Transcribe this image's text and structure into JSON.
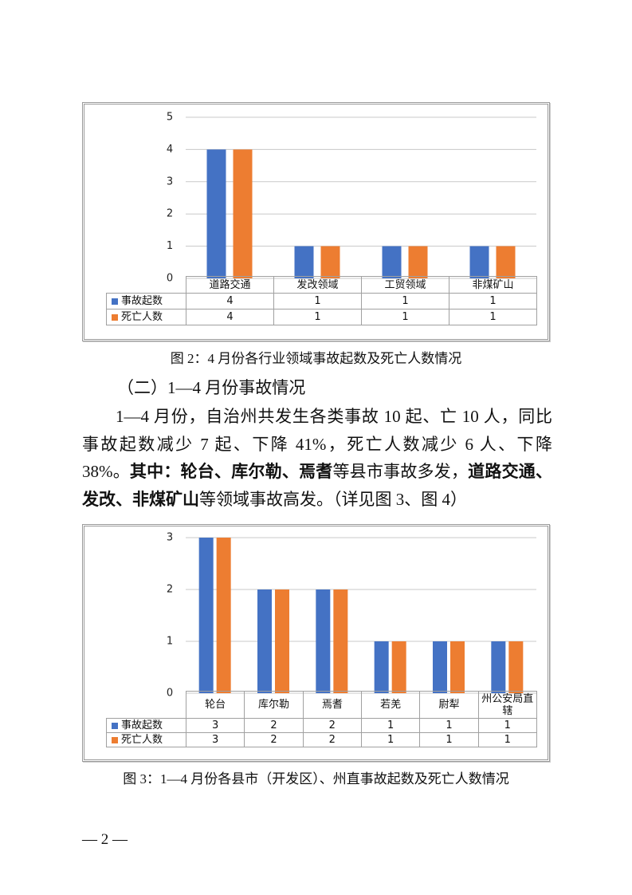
{
  "chart_data": [
    {
      "type": "bar",
      "caption": "图 2：4 月份各行业领域事故起数及死亡人数情况",
      "categories": [
        "道路交通",
        "发改领域",
        "工贸领域",
        "非煤矿山"
      ],
      "series": [
        {
          "name": "事故起数",
          "color": "#4472c4",
          "values": [
            4,
            1,
            1,
            1
          ]
        },
        {
          "name": "死亡人数",
          "color": "#ed7d31",
          "values": [
            4,
            1,
            1,
            1
          ]
        }
      ],
      "ylim": [
        0,
        5
      ],
      "yticks": [
        0,
        1,
        2,
        3,
        4,
        5
      ],
      "grid": true
    },
    {
      "type": "bar",
      "caption": "图 3：1—4 月份各县市（开发区）、州直事故起数及死亡人数情况",
      "categories": [
        "轮台",
        "库尔勒",
        "焉耆",
        "若羌",
        "尉犁",
        "州公安局直辖"
      ],
      "series": [
        {
          "name": "事故起数",
          "color": "#4472c4",
          "values": [
            3,
            2,
            2,
            1,
            1,
            1
          ]
        },
        {
          "name": "死亡人数",
          "color": "#ed7d31",
          "values": [
            3,
            2,
            2,
            1,
            1,
            1
          ]
        }
      ],
      "ylim": [
        0,
        3
      ],
      "yticks": [
        0,
        1,
        2,
        3
      ],
      "grid": true
    }
  ],
  "section_heading": "（二）1—4 月份事故情况",
  "paragraph": [
    {
      "text": "1—4 月份，自治州共发生各类事故 10 起、亡 10 人，同比事故起数减少 7 起、下降 41%，死亡人数减少 6 人、下降 38%。",
      "bold": false
    },
    {
      "text": "其中：轮台、库尔勒、焉耆",
      "bold": true
    },
    {
      "text": "等县市事故多发，",
      "bold": false
    },
    {
      "text": "道路交通、发改、非煤矿山",
      "bold": true
    },
    {
      "text": "等领域事故高发。（详见图 3、图 4）",
      "bold": false
    }
  ],
  "page_number": "— 2 —"
}
